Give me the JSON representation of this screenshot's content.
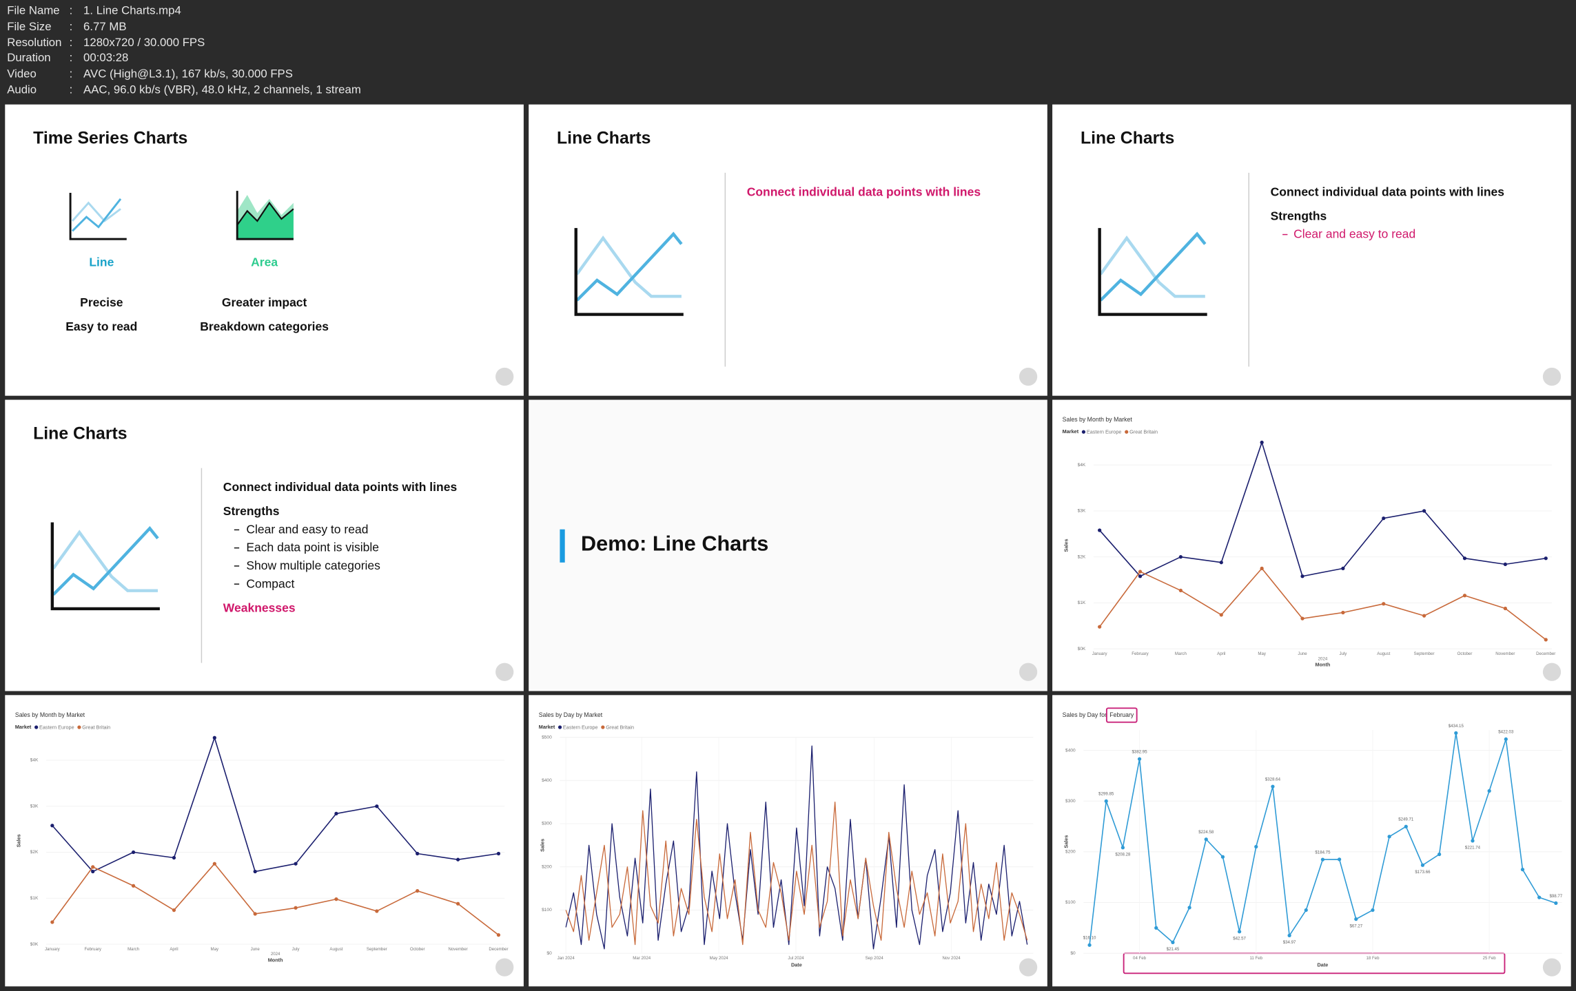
{
  "header": {
    "rows": [
      [
        "File Name",
        "1. Line Charts.mp4"
      ],
      [
        "File Size",
        "6.77 MB"
      ],
      [
        "Resolution",
        "1280x720 / 30.000 FPS"
      ],
      [
        "Duration",
        "00:03:28"
      ],
      [
        "Video",
        "AVC (High@L3.1), 167 kb/s, 30.000 FPS"
      ],
      [
        "Audio",
        "AAC, 96.0 kb/s (VBR), 48.0 kHz, 2 channels, 1 stream"
      ]
    ]
  },
  "slides": [
    {
      "title": "Time Series Charts",
      "items": [
        {
          "name": "Line",
          "points": [
            "Precise",
            "Easy to read"
          ]
        },
        {
          "name": "Area",
          "points": [
            "Greater impact",
            "Breakdown categories"
          ]
        }
      ]
    },
    {
      "title": "Line Charts",
      "lead": "Connect individual data points with lines"
    },
    {
      "title": "Line Charts",
      "lead": "Connect individual data points with lines",
      "heading": "Strengths",
      "points": [
        "Clear and easy to read"
      ]
    },
    {
      "title": "Line Charts",
      "lead": "Connect individual data points with lines",
      "heading": "Strengths",
      "points": [
        "Clear and easy to read",
        "Each data point is visible",
        "Show multiple categories",
        "Compact"
      ],
      "weakness": "Weaknesses"
    },
    {
      "title": "Demo: Line Charts"
    }
  ],
  "chart_data": [
    {
      "type": "line",
      "title": "Sales by Month by Market",
      "legend_title": "Market",
      "xlabel": "Month",
      "x_group_label": "2024",
      "ylabel": "Sales",
      "markers": true,
      "grid": true,
      "categories": [
        "January",
        "February",
        "March",
        "April",
        "May",
        "June",
        "July",
        "August",
        "September",
        "October",
        "November",
        "December"
      ],
      "series": [
        {
          "name": "Eastern Europe",
          "color": "#1b1f6e",
          "values": [
            2580,
            1580,
            2000,
            1880,
            4490,
            1580,
            1750,
            2840,
            3000,
            1970,
            1840,
            1970
          ]
        },
        {
          "name": "Great Britain",
          "color": "#c8693a",
          "values": [
            480,
            1680,
            1270,
            740,
            1750,
            660,
            790,
            980,
            720,
            1160,
            880,
            200
          ]
        }
      ],
      "ylim": [
        0,
        4500
      ],
      "yticks": [
        {
          "value": 0,
          "label": "$0K"
        },
        {
          "value": 1000,
          "label": "$1K"
        },
        {
          "value": 2000,
          "label": "$2K"
        },
        {
          "value": 3000,
          "label": "$3K"
        },
        {
          "value": 4000,
          "label": "$4K"
        }
      ]
    },
    {
      "type": "line",
      "title": "Sales by Month by Market",
      "legend_title": "Market",
      "xlabel": "Month",
      "x_group_label": "2024",
      "ylabel": "Sales",
      "markers": true,
      "grid": true,
      "categories": [
        "January",
        "February",
        "March",
        "April",
        "May",
        "June",
        "July",
        "August",
        "September",
        "October",
        "November",
        "December"
      ],
      "series": [
        {
          "name": "Eastern Europe",
          "color": "#1b1f6e",
          "values": [
            2580,
            1580,
            2000,
            1880,
            4490,
            1580,
            1750,
            2840,
            3000,
            1970,
            1840,
            1970
          ]
        },
        {
          "name": "Great Britain",
          "color": "#c8693a",
          "values": [
            480,
            1680,
            1270,
            740,
            1750,
            660,
            790,
            980,
            720,
            1160,
            880,
            200
          ]
        }
      ],
      "ylim": [
        0,
        4500
      ],
      "yticks": [
        {
          "value": 0,
          "label": "$0K"
        },
        {
          "value": 1000,
          "label": "$1K"
        },
        {
          "value": 2000,
          "label": "$2K"
        },
        {
          "value": 3000,
          "label": "$3K"
        },
        {
          "value": 4000,
          "label": "$4K"
        }
      ]
    },
    {
      "type": "line",
      "title": "Sales by Day by Market",
      "legend_title": "Market",
      "xlabel": "Date",
      "ylabel": "Sales",
      "markers": false,
      "grid": true,
      "series": [
        {
          "name": "Eastern Europe",
          "color": "#1b1f6e",
          "values": [
            60,
            140,
            20,
            250,
            90,
            10,
            300,
            130,
            40,
            220,
            70,
            380,
            30,
            160,
            260,
            50,
            110,
            420,
            20,
            190,
            80,
            300,
            140,
            30,
            240,
            90,
            350,
            60,
            170,
            20,
            290,
            110,
            480,
            40,
            200,
            150,
            30,
            310,
            80,
            220,
            10,
            130,
            270,
            60,
            390,
            100,
            20,
            180,
            240,
            50,
            140,
            330,
            70,
            210,
            30,
            160,
            90,
            250,
            40,
            120,
            20
          ]
        },
        {
          "name": "Great Britain",
          "color": "#c8693a",
          "values": [
            100,
            50,
            180,
            30,
            140,
            250,
            60,
            90,
            200,
            20,
            330,
            110,
            70,
            260,
            40,
            150,
            90,
            310,
            130,
            50,
            230,
            80,
            170,
            20,
            280,
            100,
            60,
            210,
            140,
            30,
            190,
            90,
            250,
            60,
            120,
            350,
            40,
            170,
            80,
            220,
            110,
            30,
            280,
            150,
            60,
            190,
            90,
            140,
            40,
            230,
            70,
            120,
            300,
            50,
            160,
            80,
            210,
            30,
            140,
            90,
            30
          ]
        }
      ],
      "xlim": [
        0,
        365
      ],
      "xticks": [
        {
          "value": 0,
          "label": "Jan 2024"
        },
        {
          "value": 60,
          "label": "Mar 2024"
        },
        {
          "value": 121,
          "label": "May 2024"
        },
        {
          "value": 182,
          "label": "Jul 2024"
        },
        {
          "value": 244,
          "label": "Sep 2024"
        },
        {
          "value": 305,
          "label": "Nov 2024"
        }
      ],
      "ylim": [
        0,
        500
      ],
      "yticks": [
        {
          "value": 0,
          "label": "$0"
        },
        {
          "value": 100,
          "label": "$100"
        },
        {
          "value": 200,
          "label": "$200"
        },
        {
          "value": 300,
          "label": "$300"
        },
        {
          "value": 400,
          "label": "$400"
        },
        {
          "value": 500,
          "label": "$500"
        }
      ]
    },
    {
      "type": "line",
      "title": "Sales by Day for",
      "title_highlight": "February",
      "xlabel": "Date",
      "ylabel": "Sales",
      "markers": true,
      "grid": true,
      "color": "#2f9bd6",
      "x": [
        1,
        2,
        3,
        4,
        5,
        6,
        7,
        8,
        9,
        10,
        11,
        12,
        13,
        14,
        15,
        16,
        17,
        18,
        19,
        20,
        21,
        22,
        23,
        24,
        25,
        26,
        27,
        28,
        29
      ],
      "values": [
        16.1,
        299.85,
        208.28,
        382.95,
        50,
        21.45,
        90,
        224.58,
        190,
        42.57,
        210,
        328.64,
        34.97,
        85,
        184.75,
        185,
        67.27,
        85,
        230,
        249.71,
        173.66,
        195,
        434.15,
        221.74,
        320,
        422.03,
        165,
        110,
        98.77
      ],
      "value_labels": [
        "$16.10",
        "$299.85",
        "$208.28",
        "$382.95",
        null,
        "$21.45",
        null,
        "$224.58",
        null,
        "$42.57",
        null,
        "$328.64",
        "$34.97",
        null,
        "$184.75",
        null,
        "$67.27",
        null,
        null,
        "$249.71",
        "$173.66",
        null,
        "$434.15",
        "$221.74",
        null,
        "$422.03",
        null,
        null,
        "$98.77"
      ],
      "xlim": [
        1,
        29
      ],
      "xticks": [
        {
          "value": 4,
          "label": "04 Feb"
        },
        {
          "value": 11,
          "label": "11 Feb"
        },
        {
          "value": 18,
          "label": "18 Feb"
        },
        {
          "value": 25,
          "label": "25 Feb"
        }
      ],
      "ylim": [
        0,
        440
      ],
      "yticks": [
        {
          "value": 0,
          "label": "$0"
        },
        {
          "value": 100,
          "label": "$100"
        },
        {
          "value": 200,
          "label": "$200"
        },
        {
          "value": 300,
          "label": "$300"
        },
        {
          "value": 400,
          "label": "$400"
        }
      ]
    }
  ]
}
